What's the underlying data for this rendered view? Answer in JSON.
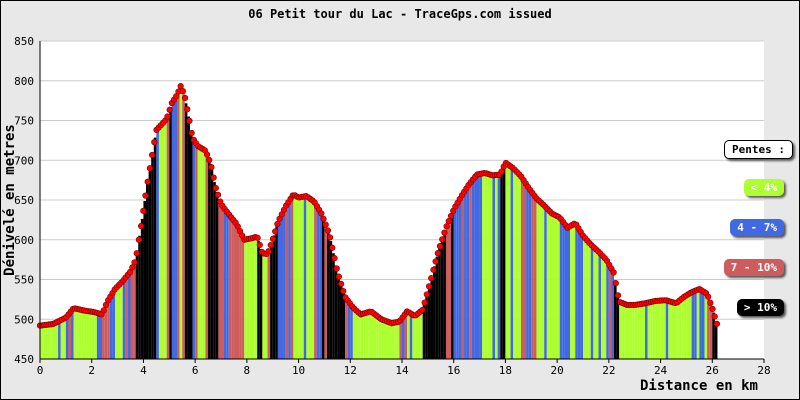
{
  "chart_data": {
    "type": "area",
    "title": "06 Petit tour du Lac - TraceGps.com issued",
    "xlabel": "Distance en km",
    "ylabel": "Dénivelé en metres",
    "xlim": [
      0,
      28
    ],
    "ylim": [
      450,
      850
    ],
    "xticks": [
      "0",
      "2",
      "4",
      "6",
      "8",
      "10",
      "12",
      "14",
      "16",
      "18",
      "20",
      "22",
      "24",
      "26",
      "28"
    ],
    "yticks": [
      "450",
      "500",
      "550",
      "600",
      "650",
      "700",
      "750",
      "800",
      "850"
    ],
    "grid": "horizontal",
    "points": [
      [
        0,
        492
      ],
      [
        0.5,
        494
      ],
      [
        1.0,
        502
      ],
      [
        1.3,
        514
      ],
      [
        1.7,
        511
      ],
      [
        2.1,
        509
      ],
      [
        2.4,
        506
      ],
      [
        2.6,
        522
      ],
      [
        2.9,
        538
      ],
      [
        3.2,
        548
      ],
      [
        3.5,
        560
      ],
      [
        3.7,
        575
      ],
      [
        3.9,
        615
      ],
      [
        4.1,
        660
      ],
      [
        4.3,
        700
      ],
      [
        4.5,
        738
      ],
      [
        4.7,
        745
      ],
      [
        4.9,
        752
      ],
      [
        5.1,
        772
      ],
      [
        5.3,
        782
      ],
      [
        5.45,
        794
      ],
      [
        5.6,
        780
      ],
      [
        5.75,
        755
      ],
      [
        5.9,
        728
      ],
      [
        6.1,
        718
      ],
      [
        6.4,
        712
      ],
      [
        6.6,
        696
      ],
      [
        6.8,
        665
      ],
      [
        7.0,
        645
      ],
      [
        7.3,
        632
      ],
      [
        7.6,
        620
      ],
      [
        7.9,
        600
      ],
      [
        8.2,
        602
      ],
      [
        8.4,
        604
      ],
      [
        8.6,
        583
      ],
      [
        8.8,
        582
      ],
      [
        9.0,
        600
      ],
      [
        9.2,
        622
      ],
      [
        9.5,
        642
      ],
      [
        9.8,
        657
      ],
      [
        10.0,
        653
      ],
      [
        10.3,
        655
      ],
      [
        10.6,
        648
      ],
      [
        10.9,
        632
      ],
      [
        11.2,
        606
      ],
      [
        11.5,
        560
      ],
      [
        11.8,
        528
      ],
      [
        12.1,
        515
      ],
      [
        12.4,
        506
      ],
      [
        12.8,
        510
      ],
      [
        13.2,
        500
      ],
      [
        13.6,
        495
      ],
      [
        13.9,
        497
      ],
      [
        14.2,
        510
      ],
      [
        14.5,
        504
      ],
      [
        14.8,
        512
      ],
      [
        15.1,
        548
      ],
      [
        15.4,
        585
      ],
      [
        15.7,
        615
      ],
      [
        16.0,
        638
      ],
      [
        16.3,
        655
      ],
      [
        16.6,
        670
      ],
      [
        16.9,
        682
      ],
      [
        17.2,
        684
      ],
      [
        17.5,
        681
      ],
      [
        17.8,
        682
      ],
      [
        18.0,
        697
      ],
      [
        18.3,
        690
      ],
      [
        18.6,
        680
      ],
      [
        18.9,
        665
      ],
      [
        19.2,
        652
      ],
      [
        19.5,
        643
      ],
      [
        19.8,
        633
      ],
      [
        20.1,
        628
      ],
      [
        20.4,
        615
      ],
      [
        20.7,
        621
      ],
      [
        21.0,
        605
      ],
      [
        21.3,
        594
      ],
      [
        21.6,
        585
      ],
      [
        21.9,
        575
      ],
      [
        22.2,
        558
      ],
      [
        22.4,
        522
      ],
      [
        22.7,
        518
      ],
      [
        23.0,
        518
      ],
      [
        23.4,
        520
      ],
      [
        23.8,
        523
      ],
      [
        24.2,
        524
      ],
      [
        24.6,
        520
      ],
      [
        24.9,
        528
      ],
      [
        25.2,
        534
      ],
      [
        25.5,
        538
      ],
      [
        25.8,
        532
      ],
      [
        26.0,
        514
      ],
      [
        26.2,
        492
      ]
    ],
    "legend": {
      "title": "Pentes :",
      "items": [
        {
          "label": "< 4%",
          "color": "#adff2f"
        },
        {
          "label": "4 - 7%",
          "color": "#4169e1"
        },
        {
          "label": "7 - 10%",
          "color": "#cd5c5c"
        },
        {
          "label": "> 10%",
          "color": "#000000"
        }
      ]
    },
    "colors": {
      "background": "#e8e8e8",
      "plot_background": "#ffffff",
      "marker": "#ff0000",
      "gentle": "#adff2f",
      "moderate": "#4169e1",
      "steep": "#cd5c5c",
      "very_steep": "#000000"
    }
  }
}
